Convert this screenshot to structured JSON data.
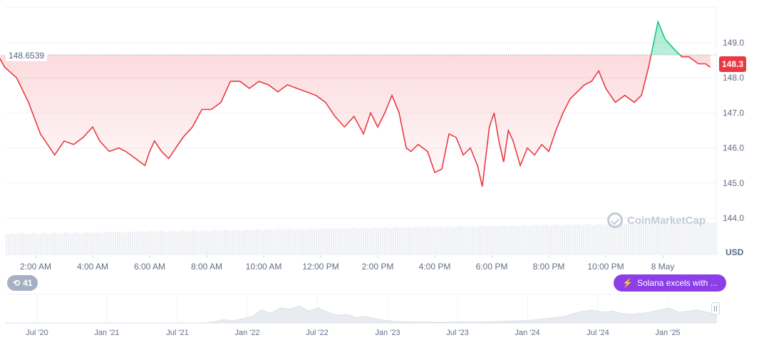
{
  "chart_data": {
    "type": "line",
    "currency": "USD",
    "reference_price": "148.6539",
    "current_price": "148.3",
    "ylim": [
      144.0,
      149.0
    ],
    "y_ticks": [
      "149.0",
      "148.0",
      "147.0",
      "146.0",
      "145.0",
      "144.0"
    ],
    "x_ticks": [
      "2:00 AM",
      "4:00 AM",
      "6:00 AM",
      "8:00 AM",
      "10:00 AM",
      "12:00 PM",
      "2:00 PM",
      "4:00 PM",
      "6:00 PM",
      "8:00 PM",
      "10:00 PM",
      "8 May"
    ],
    "grid": true,
    "series": [
      {
        "x": [
          "00:10",
          "00:30",
          "00:55",
          "01:20",
          "01:45",
          "02:10",
          "02:40",
          "03:00",
          "03:20",
          "03:40",
          "04:00",
          "04:15",
          "04:35",
          "04:55",
          "05:10",
          "05:30",
          "05:50",
          "06:00",
          "06:10",
          "06:25",
          "06:40",
          "06:55",
          "07:10",
          "07:30",
          "07:50",
          "08:10",
          "08:30",
          "08:50",
          "09:10",
          "09:30",
          "09:50",
          "10:10",
          "10:30",
          "10:50",
          "11:10",
          "11:30",
          "11:50",
          "12:10",
          "12:30",
          "12:50",
          "13:10",
          "13:30",
          "13:45",
          "14:00",
          "14:15",
          "14:30",
          "14:45",
          "15:00",
          "15:10",
          "15:25",
          "15:45",
          "16:00",
          "16:15",
          "16:30",
          "16:45",
          "17:00",
          "17:15",
          "17:30",
          "17:40",
          "17:55",
          "18:05",
          "18:15",
          "18:25",
          "18:35",
          "18:45",
          "19:00",
          "19:15",
          "19:30",
          "19:45",
          "20:00",
          "20:15",
          "20:30",
          "20:45",
          "21:00",
          "21:15",
          "21:30",
          "21:45",
          "22:00",
          "22:20",
          "22:40",
          "23:00",
          "23:15",
          "23:30",
          "23:50",
          "00:05",
          "00:25",
          "00:40",
          "00:55",
          "01:05",
          "01:15",
          "01:30",
          "01:40"
        ],
        "values": [
          149.3,
          148.9,
          148.3,
          148.0,
          147.3,
          146.4,
          145.8,
          146.2,
          146.1,
          146.3,
          146.6,
          146.2,
          145.9,
          146.0,
          145.9,
          145.7,
          145.5,
          145.9,
          146.2,
          145.9,
          145.7,
          146.0,
          146.3,
          146.6,
          147.1,
          147.1,
          147.3,
          147.9,
          147.9,
          147.7,
          147.9,
          147.8,
          147.6,
          147.8,
          147.7,
          147.6,
          147.5,
          147.3,
          146.9,
          146.6,
          146.9,
          146.4,
          147.0,
          146.6,
          147.0,
          147.5,
          147.0,
          146.0,
          145.9,
          146.1,
          145.9,
          145.3,
          145.4,
          146.4,
          146.3,
          145.8,
          146.0,
          145.5,
          144.9,
          146.6,
          147.0,
          146.2,
          145.6,
          146.5,
          146.2,
          145.5,
          146.0,
          145.8,
          146.1,
          145.9,
          146.5,
          147.0,
          147.4,
          147.6,
          147.8,
          147.9,
          148.2,
          147.7,
          147.3,
          147.5,
          147.3,
          147.5,
          148.3,
          149.6,
          149.1,
          148.8,
          148.6,
          148.6,
          148.5,
          148.4,
          148.4,
          148.3
        ]
      }
    ],
    "navigator": {
      "x_ticks": [
        "Jul '20",
        "Jan '21",
        "Jul '21",
        "Jan '22",
        "Jul '22",
        "Jan '23",
        "Jul '23",
        "Jan '24",
        "Jul '24",
        "Jan '25"
      ],
      "values": [
        0,
        0,
        0,
        0,
        0,
        0,
        0,
        0,
        0,
        0,
        0,
        0,
        0,
        0,
        0,
        0,
        0,
        0,
        0,
        0,
        0,
        0,
        0.05,
        0.15,
        0.1,
        0.2,
        0.3,
        0.6,
        0.45,
        0.7,
        0.65,
        0.8,
        0.55,
        0.7,
        0.5,
        0.35,
        0.4,
        0.25,
        0.3,
        0.2,
        0.12,
        0.08,
        0.05,
        0.05,
        0.04,
        0.03,
        0.03,
        0.04,
        0.05,
        0.04,
        0.04,
        0.05,
        0.06,
        0.08,
        0.1,
        0.12,
        0.15,
        0.2,
        0.25,
        0.3,
        0.45,
        0.55,
        0.6,
        0.5,
        0.55,
        0.45,
        0.4,
        0.45,
        0.5,
        0.6,
        0.7,
        0.5,
        0.55,
        0.6,
        0.5,
        0.35
      ]
    }
  },
  "price_axis": {
    "current_price_label": "148.3",
    "reference_price_label": "148.6539",
    "currency_label": "USD"
  },
  "watermark": {
    "text": "CoinMarketCap"
  },
  "events": {
    "count": "41"
  },
  "news": {
    "text": "Solana excels with ..."
  },
  "colors": {
    "up": "#16c784",
    "down": "#ea3943",
    "news": "#8c3fe8"
  }
}
